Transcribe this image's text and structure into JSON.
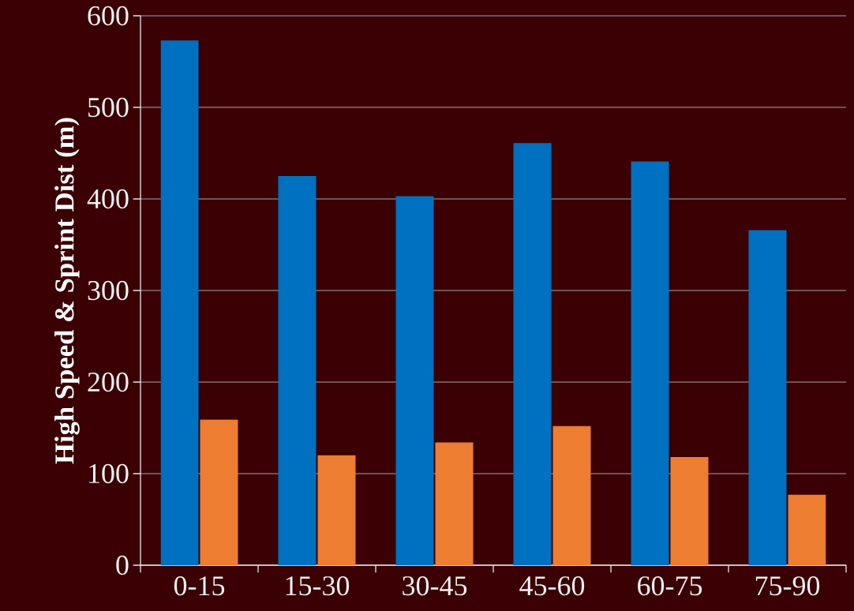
{
  "chart_data": {
    "type": "bar",
    "ylabel": "High Speed & Sprint Dist (m)",
    "categories": [
      "0-15",
      "15-30",
      "30-45",
      "45-60",
      "60-75",
      "75-90"
    ],
    "series": [
      {
        "color": "#0070c0",
        "values": [
          573,
          425,
          403,
          461,
          441,
          366
        ]
      },
      {
        "color": "#ed7d31",
        "values": [
          159,
          120,
          134,
          152,
          118,
          77
        ]
      }
    ],
    "ylim": [
      0,
      600
    ],
    "yticks": [
      0,
      100,
      200,
      300,
      400,
      500,
      600
    ],
    "grid": "y"
  }
}
